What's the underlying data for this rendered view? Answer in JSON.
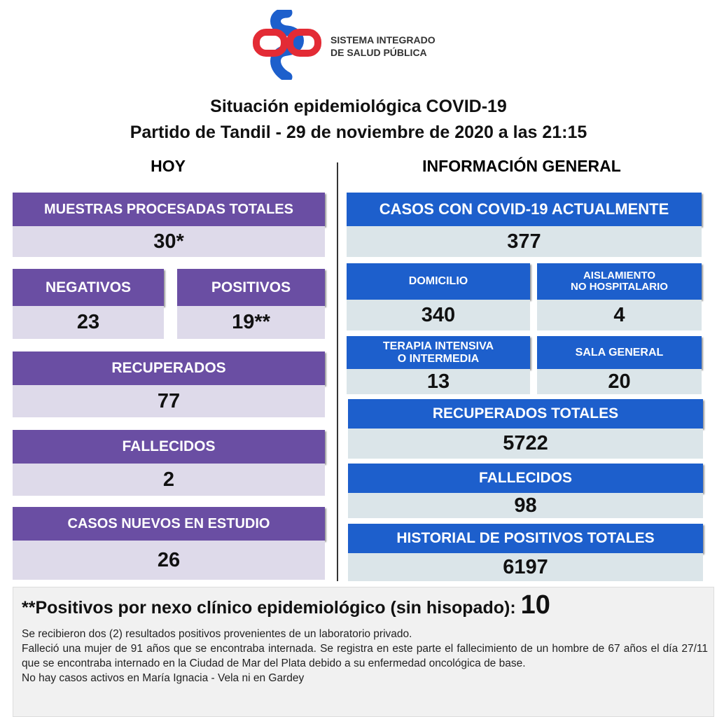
{
  "logo": {
    "lines": [
      "SISTEMA INTEGRADO",
      "DE SALUD PÚBLICA"
    ]
  },
  "header": {
    "title": "Situación epidemiológica COVID-19",
    "subtitle": "Partido de Tandil - 29 de noviembre de 2020 a las 21:15"
  },
  "today": {
    "heading": "HOY",
    "cards": [
      {
        "label": [
          "MUESTRAS PROCESADAS TOTALES"
        ],
        "value": "30*"
      },
      {
        "label": [
          "NEGATIVOS"
        ],
        "value": "23"
      },
      {
        "label": [
          "POSITIVOS"
        ],
        "value": "19**"
      },
      {
        "label": [
          "RECUPERADOS"
        ],
        "value": "77"
      },
      {
        "label": [
          "FALLECIDOS"
        ],
        "value": "2"
      },
      {
        "label": [
          "CASOS NUEVOS EN ESTUDIO"
        ],
        "value": "26"
      }
    ]
  },
  "general": {
    "heading": "INFORMACIÓN GENERAL",
    "cards": [
      {
        "label": [
          "CASOS CON COVID-19 ACTUALMENTE"
        ],
        "value": "377"
      },
      {
        "label": [
          "DOMICILIO"
        ],
        "value": "340"
      },
      {
        "label": [
          "AISLAMIENTO",
          "NO HOSPITALARIO"
        ],
        "value": "4"
      },
      {
        "label": [
          "TERAPIA INTENSIVA",
          "O INTERMEDIA"
        ],
        "value": "13"
      },
      {
        "label": [
          "SALA GENERAL"
        ],
        "value": "20"
      },
      {
        "label": [
          "RECUPERADOS TOTALES"
        ],
        "value": "5722"
      },
      {
        "label": [
          "FALLECIDOS"
        ],
        "value": "98"
      },
      {
        "label": [
          "HISTORIAL DE POSITIVOS TOTALES"
        ],
        "value": "6197"
      }
    ]
  },
  "note": {
    "text": "**Positivos por nexo clínico epidemiológico (sin hisopado):",
    "value": "10",
    "paragraphs": [
      "Se recibieron dos (2) resultados positivos  provenientes de un laboratorio privado.",
      "Falleció una mujer de 91 años que se encontraba internada. Se registra en este parte el fallecimiento de un hombre de 67 años el día 27/11 que se encontraba internado en la Ciudad de Mar del Plata debido a su enfermedad oncológica de base.",
      "No hay casos activos en María Ignacia - Vela ni en Gardey"
    ]
  }
}
